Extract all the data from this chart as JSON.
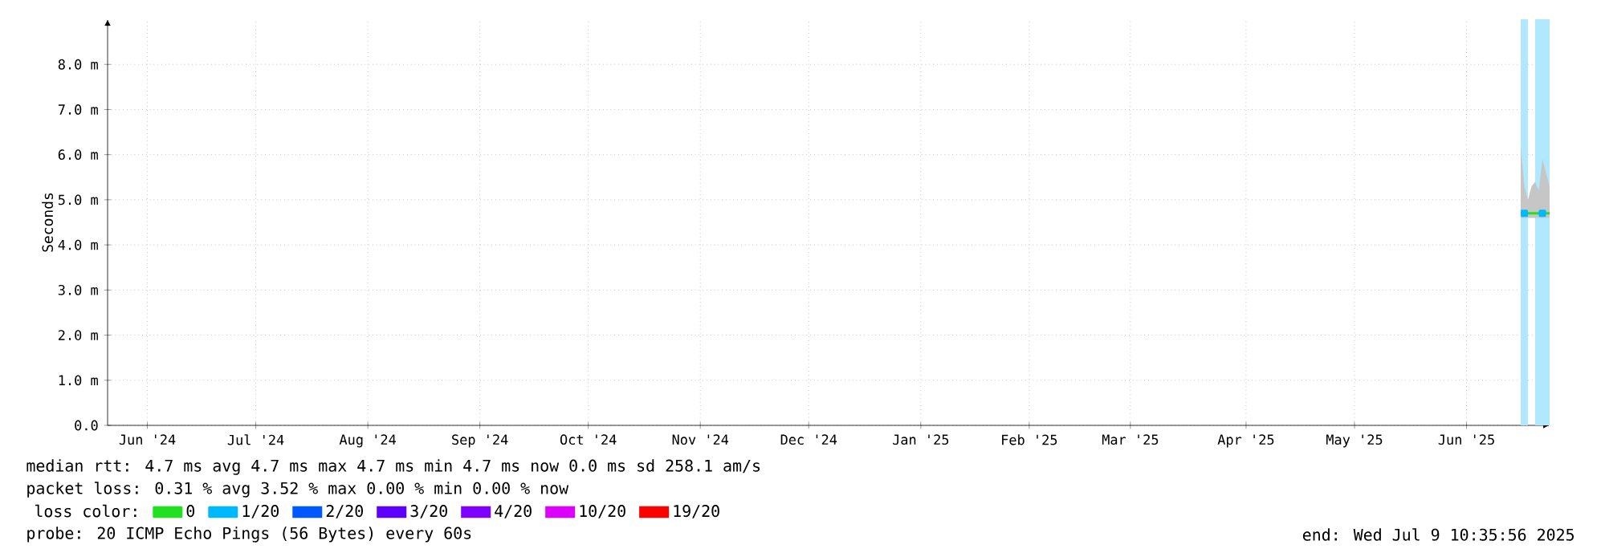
{
  "chart_data": {
    "type": "line",
    "ylabel": "Seconds",
    "legend_title": "loss color:",
    "x": [
      "2025-07-01",
      "2025-07-02",
      "2025-07-03",
      "2025-07-04",
      "2025-07-05",
      "2025-07-06",
      "2025-07-07",
      "2025-07-08",
      "2025-07-09"
    ],
    "series": [
      {
        "name": "0",
        "color": "#20e020",
        "values": [
          4.7,
          4.7,
          4.7,
          4.7,
          4.7,
          4.7,
          4.7,
          4.7,
          4.7
        ],
        "lower": [
          4.6,
          4.6,
          4.6,
          4.6,
          4.6,
          4.6,
          4.6,
          4.6,
          4.6
        ],
        "upper": [
          6.2,
          5.3,
          5.0,
          5.3,
          5.4,
          5.2,
          5.9,
          5.6,
          5.3
        ]
      },
      {
        "name": "1/20",
        "color": "#00b8ff",
        "type": "scatter",
        "marker": "square",
        "values": [
          null,
          4.7,
          null,
          null,
          null,
          null,
          4.7,
          null,
          null
        ]
      },
      {
        "name": "2/20",
        "color": "#0059ff",
        "values": [
          null,
          null,
          null,
          null,
          null,
          null,
          null,
          null,
          null
        ]
      },
      {
        "name": "3/20",
        "color": "#5e00ff",
        "values": [
          null,
          null,
          null,
          null,
          null,
          null,
          null,
          null,
          null
        ]
      },
      {
        "name": "4/20",
        "color": "#7e00ff",
        "values": [
          null,
          null,
          null,
          null,
          null,
          null,
          null,
          null,
          null
        ]
      },
      {
        "name": "10/20",
        "color": "#dd00ff",
        "values": [
          null,
          null,
          null,
          null,
          null,
          null,
          null,
          null,
          null
        ]
      },
      {
        "name": "19/20",
        "color": "#ff0000",
        "values": [
          null,
          null,
          null,
          null,
          null,
          null,
          null,
          null,
          null
        ]
      }
    ],
    "xlim": [
      "2024-06-05",
      "2025-07-09"
    ],
    "xticks": [
      {
        "value": "2024-06-16",
        "label": "Jun '24"
      },
      {
        "value": "2024-07-16",
        "label": "Jul '24"
      },
      {
        "value": "2024-08-16",
        "label": "Aug '24"
      },
      {
        "value": "2024-09-16",
        "label": "Sep '24"
      },
      {
        "value": "2024-10-16",
        "label": "Oct '24"
      },
      {
        "value": "2024-11-16",
        "label": "Nov '24"
      },
      {
        "value": "2024-12-16",
        "label": "Dec '24"
      },
      {
        "value": "2025-01-16",
        "label": "Jan '25"
      },
      {
        "value": "2025-02-15",
        "label": "Feb '25"
      },
      {
        "value": "2025-03-15",
        "label": "Mar '25"
      },
      {
        "value": "2025-04-16",
        "label": "Apr '25"
      },
      {
        "value": "2025-05-16",
        "label": "May '25"
      },
      {
        "value": "2025-06-16",
        "label": "Jun '25"
      }
    ],
    "ylim": [
      0,
      9
    ],
    "yticks": [
      {
        "value": 0,
        "label": "0.0"
      },
      {
        "value": 1,
        "label": "1.0 m"
      },
      {
        "value": 2,
        "label": "2.0 m"
      },
      {
        "value": 3,
        "label": "3.0 m"
      },
      {
        "value": 4,
        "label": "4.0 m"
      },
      {
        "value": 5,
        "label": "5.0 m"
      },
      {
        "value": 6,
        "label": "6.0 m"
      },
      {
        "value": 7,
        "label": "7.0 m"
      },
      {
        "value": 8,
        "label": "8.0 m"
      }
    ],
    "bands": [
      {
        "axis": "x",
        "from": "2025-07-01",
        "to": "2025-07-03",
        "color": "#b0e8ff"
      },
      {
        "axis": "x",
        "from": "2025-07-05",
        "to": "2025-07-09",
        "color": "#b0e8ff"
      }
    ],
    "grid": true,
    "legend": "bottom",
    "marker": "none",
    "line_style": "solid",
    "annotations": [
      "median rtt:  4.7 ms avg  4.7 ms max  4.7 ms min  4.7 ms now  0.0 ms sd  258.1   am/s",
      "packet loss: 0.31 % avg  3.52 % max  0.00 % min  0.00 % now",
      "probe:       20 ICMP Echo Pings (56 Bytes) every 60s",
      "end: Wed Jul  9 10:35:56 2025"
    ]
  }
}
